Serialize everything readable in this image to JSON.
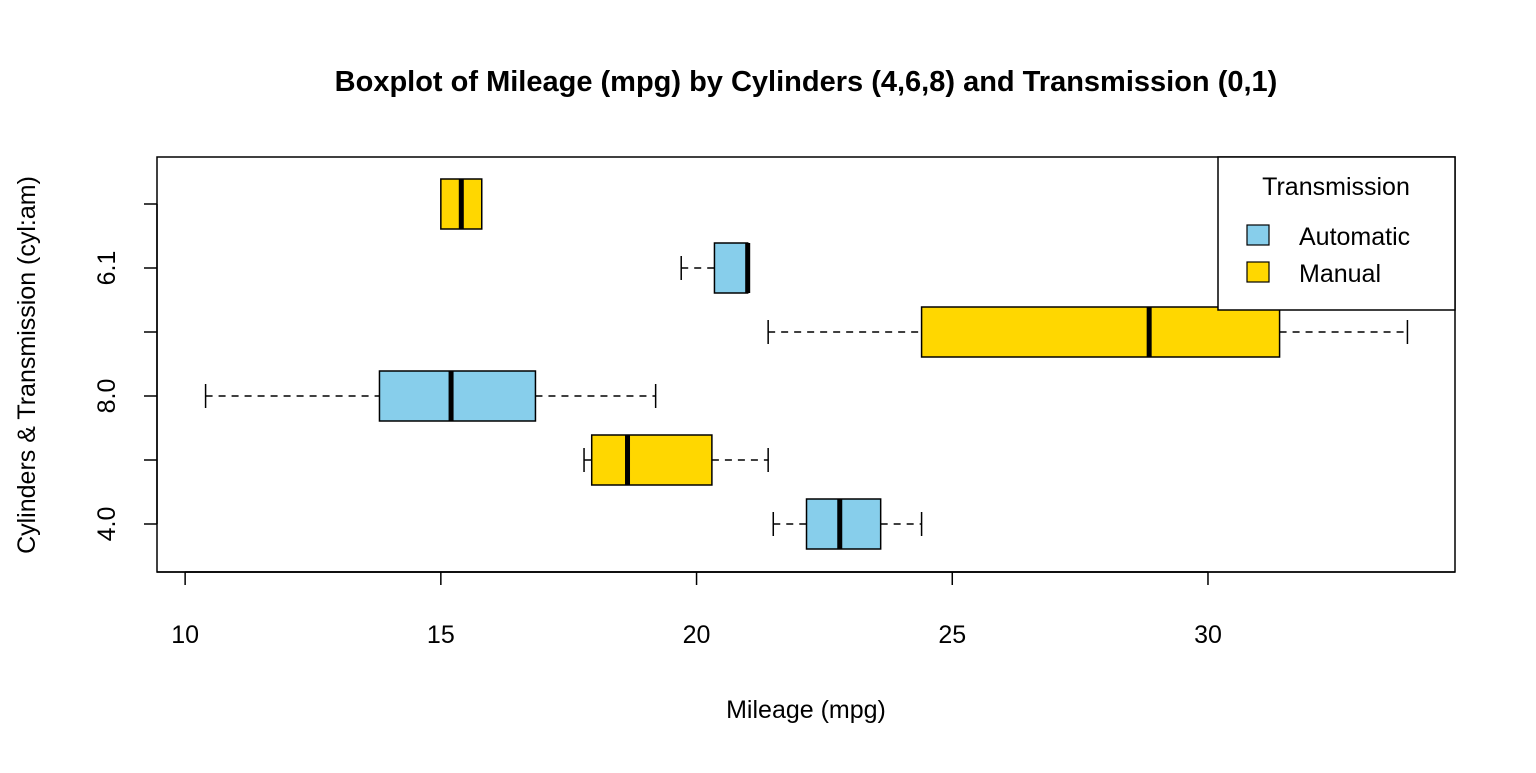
{
  "chart_data": {
    "type": "boxplot",
    "orientation": "horizontal",
    "title": "Boxplot of Mileage (mpg) by Cylinders (4,6,8) and Transmission (0,1)",
    "xlabel": "Mileage (mpg)",
    "ylabel": "Cylinders & Transmission (cyl:am)",
    "xlim": [
      9.45,
      34.83
    ],
    "xticks": [
      10,
      15,
      20,
      25,
      30
    ],
    "xtick_labels": [
      "10",
      "15",
      "20",
      "25",
      "30"
    ],
    "grid": false,
    "boxes": [
      {
        "label": "4.0",
        "color": "#87CEEB",
        "whisker_low": 21.5,
        "q1": 22.15,
        "median": 22.8,
        "q3": 23.6,
        "whisker_high": 24.4
      },
      {
        "label": "",
        "color": "#FFD700",
        "whisker_low": 17.8,
        "q1": 17.95,
        "median": 18.65,
        "q3": 20.3,
        "whisker_high": 21.4
      },
      {
        "label": "8.0",
        "color": "#87CEEB",
        "whisker_low": 10.4,
        "q1": 13.8,
        "median": 15.2,
        "q3": 16.85,
        "whisker_high": 19.2
      },
      {
        "label": "",
        "color": "#FFD700",
        "whisker_low": 21.4,
        "q1": 24.4,
        "median": 28.85,
        "q3": 31.4,
        "whisker_high": 33.9
      },
      {
        "label": "6.1",
        "color": "#87CEEB",
        "whisker_low": 19.7,
        "q1": 20.35,
        "median": 21.0,
        "q3": 21.0,
        "whisker_high": 21.0
      },
      {
        "label": "",
        "color": "#FFD700",
        "whisker_low": 15.0,
        "q1": 15.0,
        "median": 15.4,
        "q3": 15.8,
        "whisker_high": 15.8
      }
    ],
    "legend": {
      "title": "Transmission",
      "placement": "top-right",
      "entries": [
        {
          "label": "Automatic",
          "color": "#87CEEB"
        },
        {
          "label": "Manual",
          "color": "#FFD700"
        }
      ]
    }
  }
}
